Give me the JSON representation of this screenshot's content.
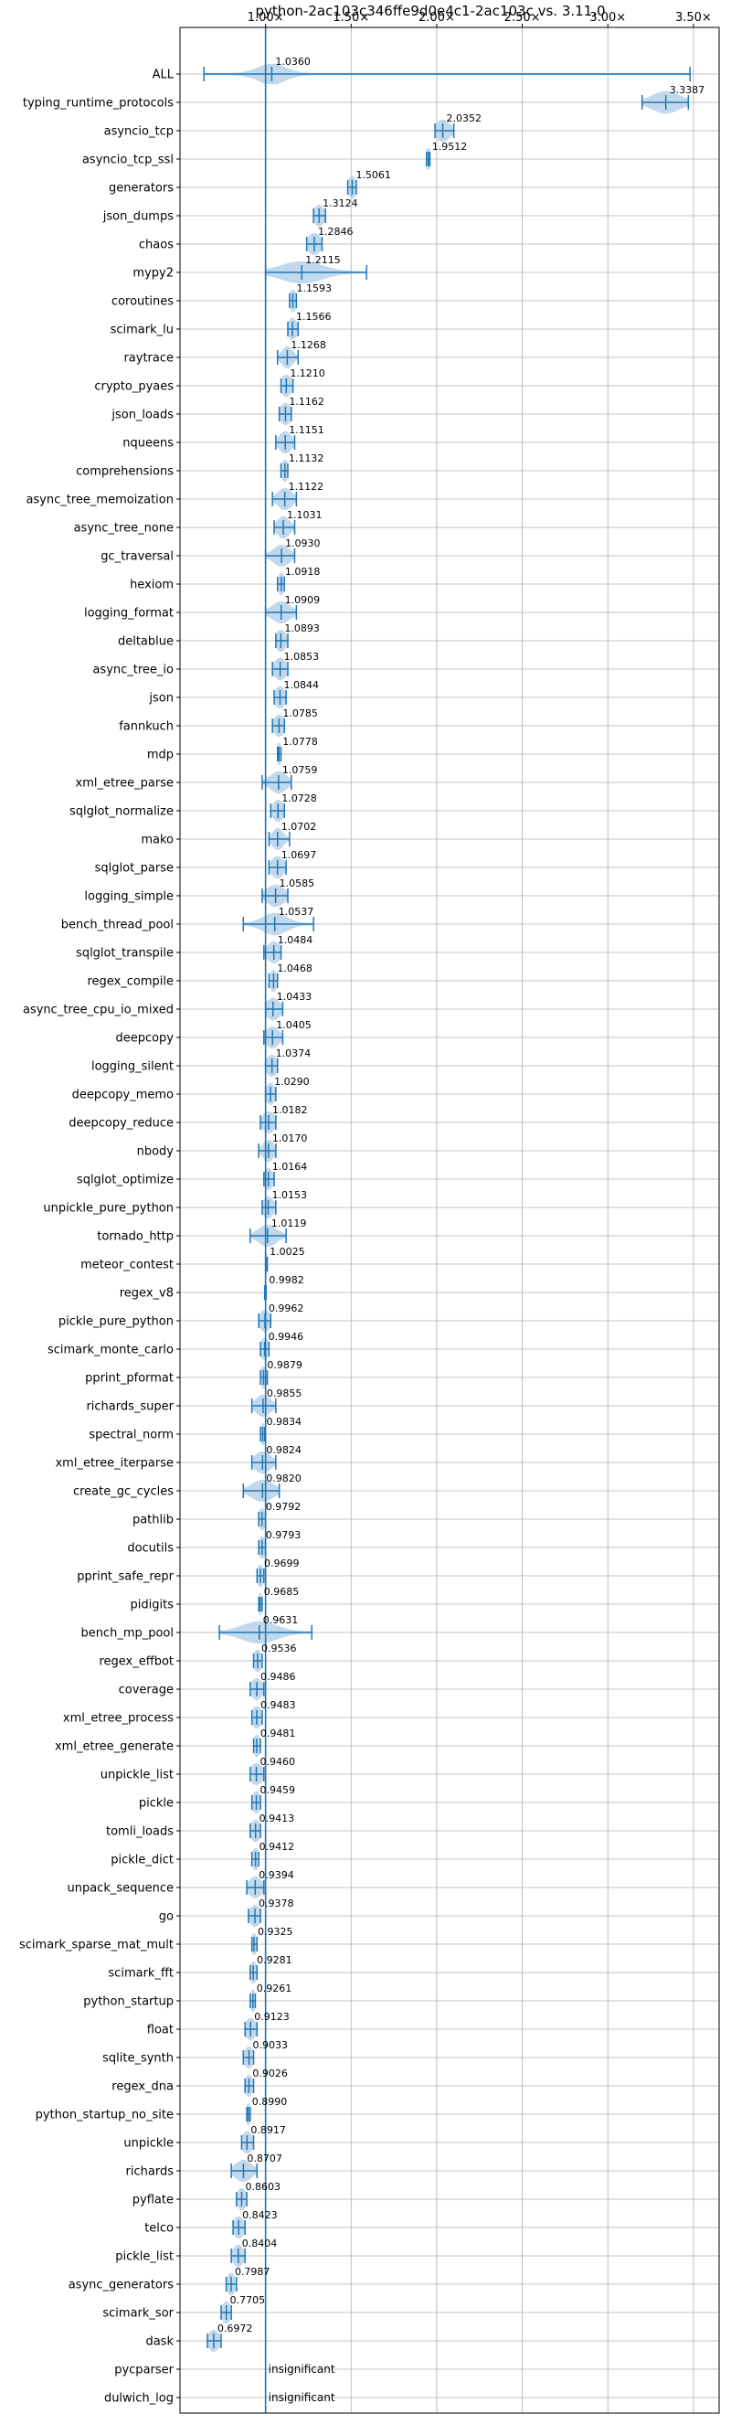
{
  "chart_data": {
    "type": "violin",
    "title": "python-2ac103c346ffe9d0e4c1-2ac103c vs. 3.11.0",
    "xlabel": "",
    "ylabel": "",
    "x_ticks": [
      1.0,
      1.5,
      2.0,
      2.5,
      3.0,
      3.5
    ],
    "x_tick_labels": [
      "1.00×",
      "1.50×",
      "2.00×",
      "2.50×",
      "3.00×",
      "3.50×"
    ],
    "xlim": [
      0.5,
      3.65
    ],
    "reference_line": 1.0,
    "grid": true,
    "color": "#1f77b4",
    "violin_fill": "#aecbe6",
    "benchmarks": [
      {
        "name": "ALL",
        "value": 1.036,
        "label": "1.0360",
        "lo": 0.64,
        "hi": 3.48,
        "spread": 0.075
      },
      {
        "name": "typing_runtime_protocols",
        "value": 3.3387,
        "label": "3.3387",
        "lo": 3.2,
        "hi": 3.47,
        "spread": 0.08
      },
      {
        "name": "asyncio_tcp",
        "value": 2.0352,
        "label": "2.0352",
        "lo": 1.99,
        "hi": 2.1,
        "spread": 0.04
      },
      {
        "name": "asyncio_tcp_ssl",
        "value": 1.9512,
        "label": "1.9512",
        "lo": 1.94,
        "hi": 1.96,
        "spread": 0.015
      },
      {
        "name": "generators",
        "value": 1.5061,
        "label": "1.5061",
        "lo": 1.48,
        "hi": 1.53,
        "spread": 0.025
      },
      {
        "name": "json_dumps",
        "value": 1.3124,
        "label": "1.3124",
        "lo": 1.28,
        "hi": 1.35,
        "spread": 0.03
      },
      {
        "name": "chaos",
        "value": 1.2846,
        "label": "1.2846",
        "lo": 1.24,
        "hi": 1.33,
        "spread": 0.035
      },
      {
        "name": "mypy2",
        "value": 1.2115,
        "label": "1.2115",
        "lo": 1.0,
        "hi": 1.59,
        "spread": 0.12
      },
      {
        "name": "coroutines",
        "value": 1.1593,
        "label": "1.1593",
        "lo": 1.14,
        "hi": 1.18,
        "spread": 0.02
      },
      {
        "name": "scimark_lu",
        "value": 1.1566,
        "label": "1.1566",
        "lo": 1.13,
        "hi": 1.19,
        "spread": 0.025
      },
      {
        "name": "raytrace",
        "value": 1.1268,
        "label": "1.1268",
        "lo": 1.07,
        "hi": 1.19,
        "spread": 0.03
      },
      {
        "name": "crypto_pyaes",
        "value": 1.121,
        "label": "1.1210",
        "lo": 1.09,
        "hi": 1.16,
        "spread": 0.03
      },
      {
        "name": "json_loads",
        "value": 1.1162,
        "label": "1.1162",
        "lo": 1.08,
        "hi": 1.15,
        "spread": 0.03
      },
      {
        "name": "nqueens",
        "value": 1.1151,
        "label": "1.1151",
        "lo": 1.06,
        "hi": 1.17,
        "spread": 0.035
      },
      {
        "name": "comprehensions",
        "value": 1.1132,
        "label": "1.1132",
        "lo": 1.09,
        "hi": 1.13,
        "spread": 0.02
      },
      {
        "name": "async_tree_memoization",
        "value": 1.1122,
        "label": "1.1122",
        "lo": 1.04,
        "hi": 1.18,
        "spread": 0.04
      },
      {
        "name": "async_tree_none",
        "value": 1.1031,
        "label": "1.1031",
        "lo": 1.05,
        "hi": 1.17,
        "spread": 0.035
      },
      {
        "name": "gc_traversal",
        "value": 1.093,
        "label": "1.0930",
        "lo": 1.0,
        "hi": 1.17,
        "spread": 0.045
      },
      {
        "name": "hexiom",
        "value": 1.0918,
        "label": "1.0918",
        "lo": 1.07,
        "hi": 1.11,
        "spread": 0.02
      },
      {
        "name": "logging_format",
        "value": 1.0909,
        "label": "1.0909",
        "lo": 1.0,
        "hi": 1.18,
        "spread": 0.05
      },
      {
        "name": "deltablue",
        "value": 1.0893,
        "label": "1.0893",
        "lo": 1.06,
        "hi": 1.13,
        "spread": 0.03
      },
      {
        "name": "async_tree_io",
        "value": 1.0853,
        "label": "1.0853",
        "lo": 1.04,
        "hi": 1.13,
        "spread": 0.035
      },
      {
        "name": "json",
        "value": 1.0844,
        "label": "1.0844",
        "lo": 1.05,
        "hi": 1.12,
        "spread": 0.03
      },
      {
        "name": "fannkuch",
        "value": 1.0785,
        "label": "1.0785",
        "lo": 1.04,
        "hi": 1.11,
        "spread": 0.03
      },
      {
        "name": "mdp",
        "value": 1.0778,
        "label": "1.0778",
        "lo": 1.07,
        "hi": 1.09,
        "spread": 0.015
      },
      {
        "name": "xml_etree_parse",
        "value": 1.0759,
        "label": "1.0759",
        "lo": 0.98,
        "hi": 1.15,
        "spread": 0.045
      },
      {
        "name": "sqlglot_normalize",
        "value": 1.0728,
        "label": "1.0728",
        "lo": 1.03,
        "hi": 1.11,
        "spread": 0.03
      },
      {
        "name": "mako",
        "value": 1.0702,
        "label": "1.0702",
        "lo": 1.02,
        "hi": 1.14,
        "spread": 0.03
      },
      {
        "name": "sqlglot_parse",
        "value": 1.0697,
        "label": "1.0697",
        "lo": 1.02,
        "hi": 1.12,
        "spread": 0.035
      },
      {
        "name": "logging_simple",
        "value": 1.0585,
        "label": "1.0585",
        "lo": 0.98,
        "hi": 1.13,
        "spread": 0.05
      },
      {
        "name": "bench_thread_pool",
        "value": 1.0537,
        "label": "1.0537",
        "lo": 0.87,
        "hi": 1.28,
        "spread": 0.07
      },
      {
        "name": "sqlglot_transpile",
        "value": 1.0484,
        "label": "1.0484",
        "lo": 0.99,
        "hi": 1.09,
        "spread": 0.035
      },
      {
        "name": "regex_compile",
        "value": 1.0468,
        "label": "1.0468",
        "lo": 1.02,
        "hi": 1.07,
        "spread": 0.02
      },
      {
        "name": "async_tree_cpu_io_mixed",
        "value": 1.0433,
        "label": "1.0433",
        "lo": 1.0,
        "hi": 1.1,
        "spread": 0.04
      },
      {
        "name": "deepcopy",
        "value": 1.0405,
        "label": "1.0405",
        "lo": 0.99,
        "hi": 1.1,
        "spread": 0.035
      },
      {
        "name": "logging_silent",
        "value": 1.0374,
        "label": "1.0374",
        "lo": 1.0,
        "hi": 1.07,
        "spread": 0.03
      },
      {
        "name": "deepcopy_memo",
        "value": 1.029,
        "label": "1.0290",
        "lo": 1.0,
        "hi": 1.06,
        "spread": 0.025
      },
      {
        "name": "deepcopy_reduce",
        "value": 1.0182,
        "label": "1.0182",
        "lo": 0.97,
        "hi": 1.06,
        "spread": 0.035
      },
      {
        "name": "nbody",
        "value": 1.017,
        "label": "1.0170",
        "lo": 0.96,
        "hi": 1.06,
        "spread": 0.03
      },
      {
        "name": "sqlglot_optimize",
        "value": 1.0164,
        "label": "1.0164",
        "lo": 0.99,
        "hi": 1.05,
        "spread": 0.025
      },
      {
        "name": "unpickle_pure_python",
        "value": 1.0153,
        "label": "1.0153",
        "lo": 0.98,
        "hi": 1.06,
        "spread": 0.03
      },
      {
        "name": "tornado_http",
        "value": 1.0119,
        "label": "1.0119",
        "lo": 0.91,
        "hi": 1.12,
        "spread": 0.05
      },
      {
        "name": "meteor_contest",
        "value": 1.0025,
        "label": "1.0025",
        "lo": 1.0,
        "hi": 1.01,
        "spread": 0.01
      },
      {
        "name": "regex_v8",
        "value": 0.9982,
        "label": "0.9982",
        "lo": 0.995,
        "hi": 1.003,
        "spread": 0.008
      },
      {
        "name": "pickle_pure_python",
        "value": 0.9962,
        "label": "0.9962",
        "lo": 0.96,
        "hi": 1.03,
        "spread": 0.03
      },
      {
        "name": "scimark_monte_carlo",
        "value": 0.9946,
        "label": "0.9946",
        "lo": 0.97,
        "hi": 1.02,
        "spread": 0.025
      },
      {
        "name": "pprint_pformat",
        "value": 0.9879,
        "label": "0.9879",
        "lo": 0.97,
        "hi": 1.01,
        "spread": 0.02
      },
      {
        "name": "richards_super",
        "value": 0.9855,
        "label": "0.9855",
        "lo": 0.92,
        "hi": 1.06,
        "spread": 0.04
      },
      {
        "name": "spectral_norm",
        "value": 0.9834,
        "label": "0.9834",
        "lo": 0.97,
        "hi": 0.995,
        "spread": 0.015
      },
      {
        "name": "xml_etree_iterparse",
        "value": 0.9824,
        "label": "0.9824",
        "lo": 0.92,
        "hi": 1.06,
        "spread": 0.045
      },
      {
        "name": "create_gc_cycles",
        "value": 0.982,
        "label": "0.9820",
        "lo": 0.87,
        "hi": 1.08,
        "spread": 0.06
      },
      {
        "name": "pathlib",
        "value": 0.9792,
        "label": "0.9792",
        "lo": 0.96,
        "hi": 1.0,
        "spread": 0.02
      },
      {
        "name": "docutils",
        "value": 0.9793,
        "label": "0.9793",
        "lo": 0.96,
        "hi": 1.0,
        "spread": 0.02
      },
      {
        "name": "pprint_safe_repr",
        "value": 0.9699,
        "label": "0.9699",
        "lo": 0.95,
        "hi": 0.99,
        "spread": 0.02
      },
      {
        "name": "pidigits",
        "value": 0.9685,
        "label": "0.9685",
        "lo": 0.96,
        "hi": 0.98,
        "spread": 0.012
      },
      {
        "name": "bench_mp_pool",
        "value": 0.9631,
        "label": "0.9631",
        "lo": 0.73,
        "hi": 1.27,
        "spread": 0.1
      },
      {
        "name": "regex_effbot",
        "value": 0.9536,
        "label": "0.9536",
        "lo": 0.93,
        "hi": 0.98,
        "spread": 0.025
      },
      {
        "name": "coverage",
        "value": 0.9486,
        "label": "0.9486",
        "lo": 0.91,
        "hi": 0.99,
        "spread": 0.03
      },
      {
        "name": "xml_etree_process",
        "value": 0.9483,
        "label": "0.9483",
        "lo": 0.92,
        "hi": 0.98,
        "spread": 0.03
      },
      {
        "name": "xml_etree_generate",
        "value": 0.9481,
        "label": "0.9481",
        "lo": 0.93,
        "hi": 0.97,
        "spread": 0.02
      },
      {
        "name": "unpickle_list",
        "value": 0.946,
        "label": "0.9460",
        "lo": 0.91,
        "hi": 0.99,
        "spread": 0.035
      },
      {
        "name": "pickle",
        "value": 0.9459,
        "label": "0.9459",
        "lo": 0.92,
        "hi": 0.97,
        "spread": 0.025
      },
      {
        "name": "tomli_loads",
        "value": 0.9413,
        "label": "0.9413",
        "lo": 0.91,
        "hi": 0.97,
        "spread": 0.03
      },
      {
        "name": "pickle_dict",
        "value": 0.9412,
        "label": "0.9412",
        "lo": 0.92,
        "hi": 0.96,
        "spread": 0.02
      },
      {
        "name": "unpack_sequence",
        "value": 0.9394,
        "label": "0.9394",
        "lo": 0.89,
        "hi": 0.99,
        "spread": 0.035
      },
      {
        "name": "go",
        "value": 0.9378,
        "label": "0.9378",
        "lo": 0.9,
        "hi": 0.97,
        "spread": 0.03
      },
      {
        "name": "scimark_sparse_mat_mult",
        "value": 0.9325,
        "label": "0.9325",
        "lo": 0.92,
        "hi": 0.95,
        "spread": 0.015
      },
      {
        "name": "scimark_fft",
        "value": 0.9281,
        "label": "0.9281",
        "lo": 0.91,
        "hi": 0.95,
        "spread": 0.02
      },
      {
        "name": "python_startup",
        "value": 0.9261,
        "label": "0.9261",
        "lo": 0.91,
        "hi": 0.94,
        "spread": 0.015
      },
      {
        "name": "float",
        "value": 0.9123,
        "label": "0.9123",
        "lo": 0.88,
        "hi": 0.95,
        "spread": 0.03
      },
      {
        "name": "sqlite_synth",
        "value": 0.9033,
        "label": "0.9033",
        "lo": 0.87,
        "hi": 0.93,
        "spread": 0.025
      },
      {
        "name": "regex_dna",
        "value": 0.9026,
        "label": "0.9026",
        "lo": 0.88,
        "hi": 0.93,
        "spread": 0.02
      },
      {
        "name": "python_startup_no_site",
        "value": 0.899,
        "label": "0.8990",
        "lo": 0.89,
        "hi": 0.91,
        "spread": 0.015
      },
      {
        "name": "unpickle",
        "value": 0.8917,
        "label": "0.8917",
        "lo": 0.86,
        "hi": 0.93,
        "spread": 0.03
      },
      {
        "name": "richards",
        "value": 0.8707,
        "label": "0.8707",
        "lo": 0.8,
        "hi": 0.95,
        "spread": 0.045
      },
      {
        "name": "pyflate",
        "value": 0.8603,
        "label": "0.8603",
        "lo": 0.83,
        "hi": 0.89,
        "spread": 0.025
      },
      {
        "name": "telco",
        "value": 0.8423,
        "label": "0.8423",
        "lo": 0.81,
        "hi": 0.88,
        "spread": 0.03
      },
      {
        "name": "pickle_list",
        "value": 0.8404,
        "label": "0.8404",
        "lo": 0.8,
        "hi": 0.88,
        "spread": 0.03
      },
      {
        "name": "async_generators",
        "value": 0.7987,
        "label": "0.7987",
        "lo": 0.77,
        "hi": 0.83,
        "spread": 0.025
      },
      {
        "name": "scimark_sor",
        "value": 0.7705,
        "label": "0.7705",
        "lo": 0.74,
        "hi": 0.8,
        "spread": 0.025
      },
      {
        "name": "dask",
        "value": 0.6972,
        "label": "0.6972",
        "lo": 0.66,
        "hi": 0.74,
        "spread": 0.03
      },
      {
        "name": "pycparser",
        "value": null,
        "label": "insignificant",
        "lo": null,
        "hi": null,
        "spread": 0
      },
      {
        "name": "dulwich_log",
        "value": null,
        "label": "insignificant",
        "lo": null,
        "hi": null,
        "spread": 0
      }
    ]
  }
}
